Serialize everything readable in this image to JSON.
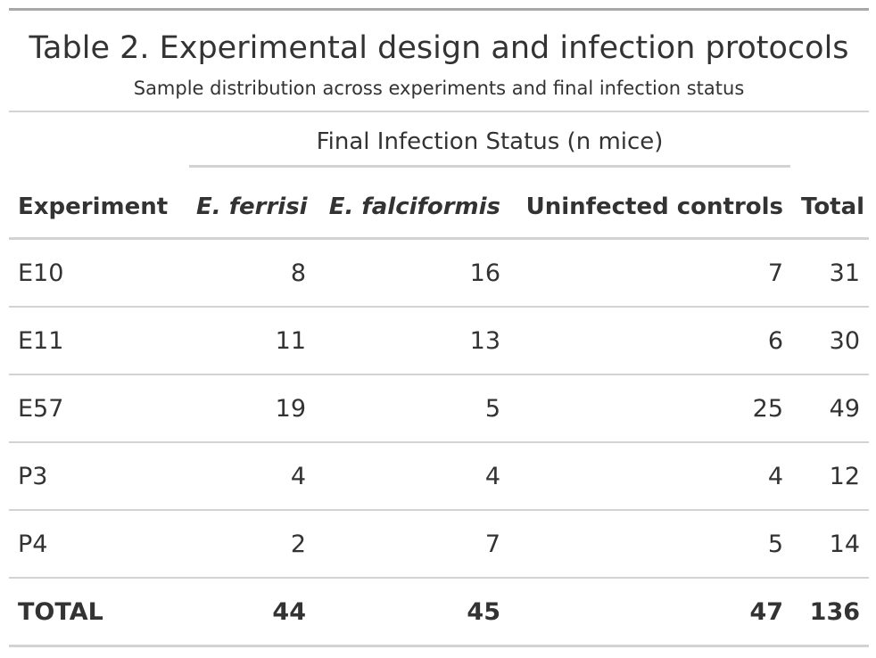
{
  "title": "Table 2. Experimental design and infection protocols",
  "subtitle": "Sample distribution across experiments and final infection status",
  "spanner": "Final Infection Status (n mice)",
  "columns": [
    "Experiment",
    "E. ferrisi",
    "E. falciformis",
    "Uninfected controls",
    "Total"
  ],
  "rows": [
    [
      "E10",
      "8",
      "16",
      "7",
      "31"
    ],
    [
      "E11",
      "11",
      "13",
      "6",
      "30"
    ],
    [
      "E57",
      "19",
      "5",
      "25",
      "49"
    ],
    [
      "P3",
      "4",
      "4",
      "4",
      "12"
    ],
    [
      "P4",
      "2",
      "7",
      "5",
      "14"
    ]
  ],
  "total_row": [
    "TOTAL",
    "44",
    "45",
    "47",
    "136"
  ]
}
